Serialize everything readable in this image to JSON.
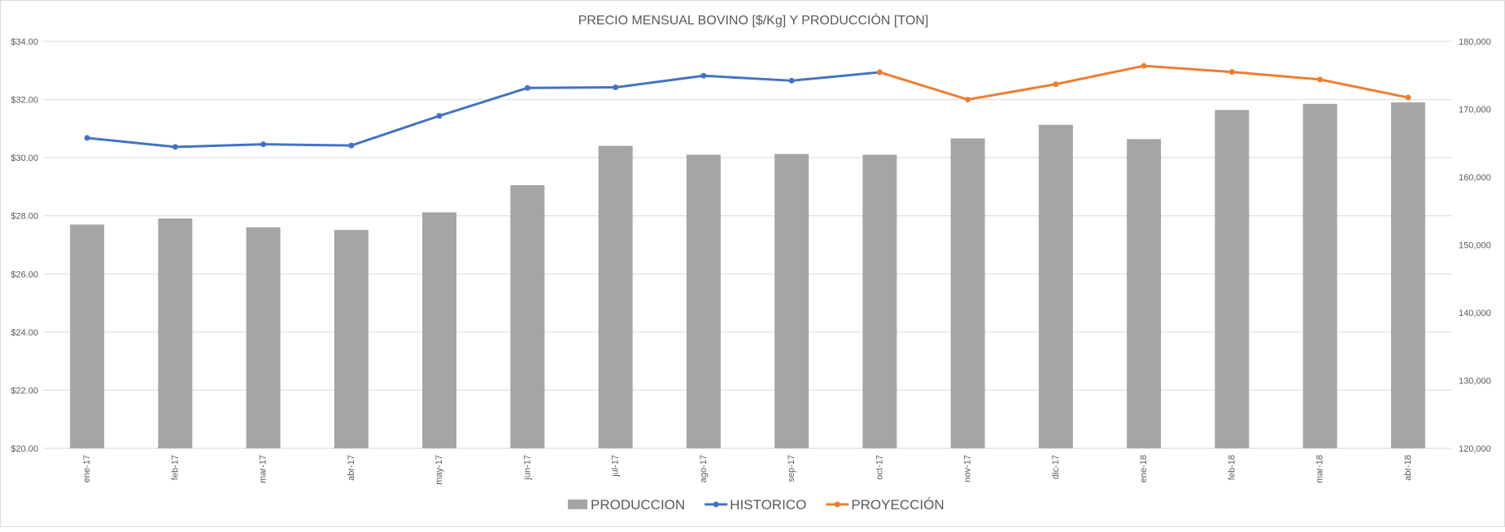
{
  "chart_data": {
    "type": "bar",
    "title": "PRECIO MENSUAL BOVINO [$/Kg] Y PRODUCCIÓN [TON]",
    "categories": [
      "ene-17",
      "feb-17",
      "mar-17",
      "abr-17",
      "may-17",
      "jun-17",
      "jul-17",
      "ago-17",
      "sep-17",
      "oct-17",
      "nov-17",
      "dic-17",
      "ene-18",
      "feb-18",
      "mar-18",
      "abr-18"
    ],
    "y_left": {
      "min": 20,
      "max": 34,
      "step": 2,
      "ticks": [
        "$20.00",
        "$22.00",
        "$24.00",
        "$26.00",
        "$28.00",
        "$30.00",
        "$32.00",
        "$34.00"
      ]
    },
    "y_right": {
      "min": 120000,
      "max": 180000,
      "step": 10000,
      "ticks": [
        "120,000",
        "130,000",
        "140,000",
        "150,000",
        "160,000",
        "170,000",
        "180,000"
      ]
    },
    "grid": true,
    "legend_position": "bottom",
    "series": [
      {
        "name": "PRODUCCION",
        "kind": "bar",
        "axis": "right",
        "color": "#a5a5a5",
        "values": [
          153000,
          153900,
          152600,
          152200,
          154800,
          158800,
          164600,
          163300,
          163400,
          163300,
          165700,
          167700,
          165600,
          169900,
          170800,
          171000
        ]
      },
      {
        "name": "HISTORICO",
        "kind": "line",
        "axis": "left",
        "color": "#4472c4",
        "values": [
          30.68,
          30.37,
          30.46,
          30.42,
          31.44,
          32.4,
          32.42,
          32.82,
          32.65,
          32.94,
          null,
          null,
          null,
          null,
          null,
          null
        ]
      },
      {
        "name": "PROYECCIÓN",
        "kind": "line",
        "axis": "left",
        "color": "#ed7d31",
        "values": [
          null,
          null,
          null,
          null,
          null,
          null,
          null,
          null,
          null,
          32.94,
          32.0,
          32.53,
          33.16,
          32.95,
          32.69,
          32.07
        ]
      }
    ]
  }
}
